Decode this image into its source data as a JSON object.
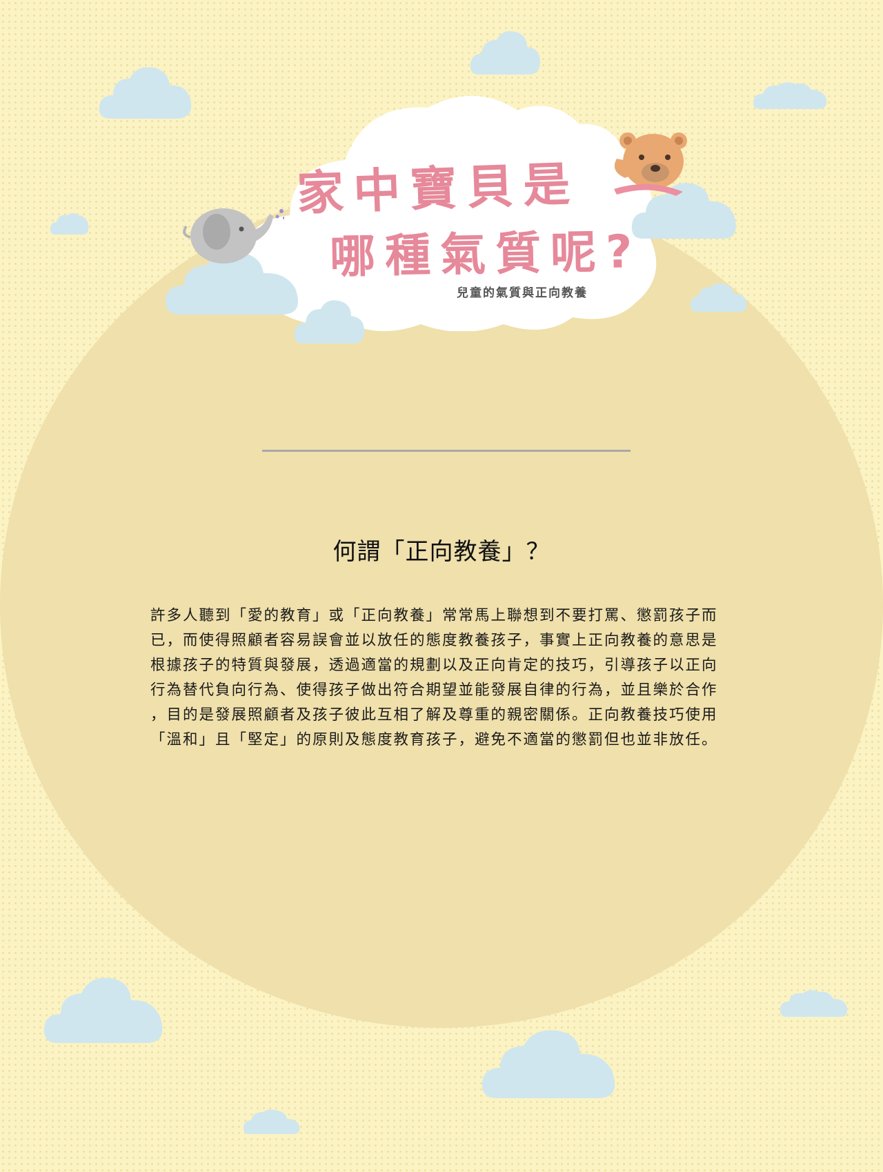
{
  "colors": {
    "background": "#fbf3c4",
    "circle": "#efe0ac",
    "cloud": "#cfe6ef",
    "title": "#e6899a"
  },
  "header": {
    "title_line_1": "家中寶貝是",
    "title_line_2": "哪種氣質呢?",
    "subtitle": "兒童的氣質與正向教養"
  },
  "illustrations": {
    "elephant": "elephant-icon",
    "bear": "bear-icon"
  },
  "section": {
    "heading": "何謂「正向教養」？",
    "body_lines": [
      "許多人聽到「愛的教育」或「正向教養」常常馬上聯想到不要打罵、懲罰孩子而",
      "已，而使得照顧者容易誤會並以放任的態度教養孩子，事實上正向教養的意思是",
      "根據孩子的特質與發展，透過適當的規劃以及正向肯定的技巧，引導孩子以正向",
      "行為替代負向行為、使得孩子做出符合期望並能發展自律的行為，並且樂於合作",
      "，目的是發展照顧者及孩子彼此互相了解及尊重的親密關係。正向教養技巧使用",
      "「溫和」且「堅定」的原則及態度教育孩子，避免不適當的懲罰但也並非放任。"
    ]
  }
}
